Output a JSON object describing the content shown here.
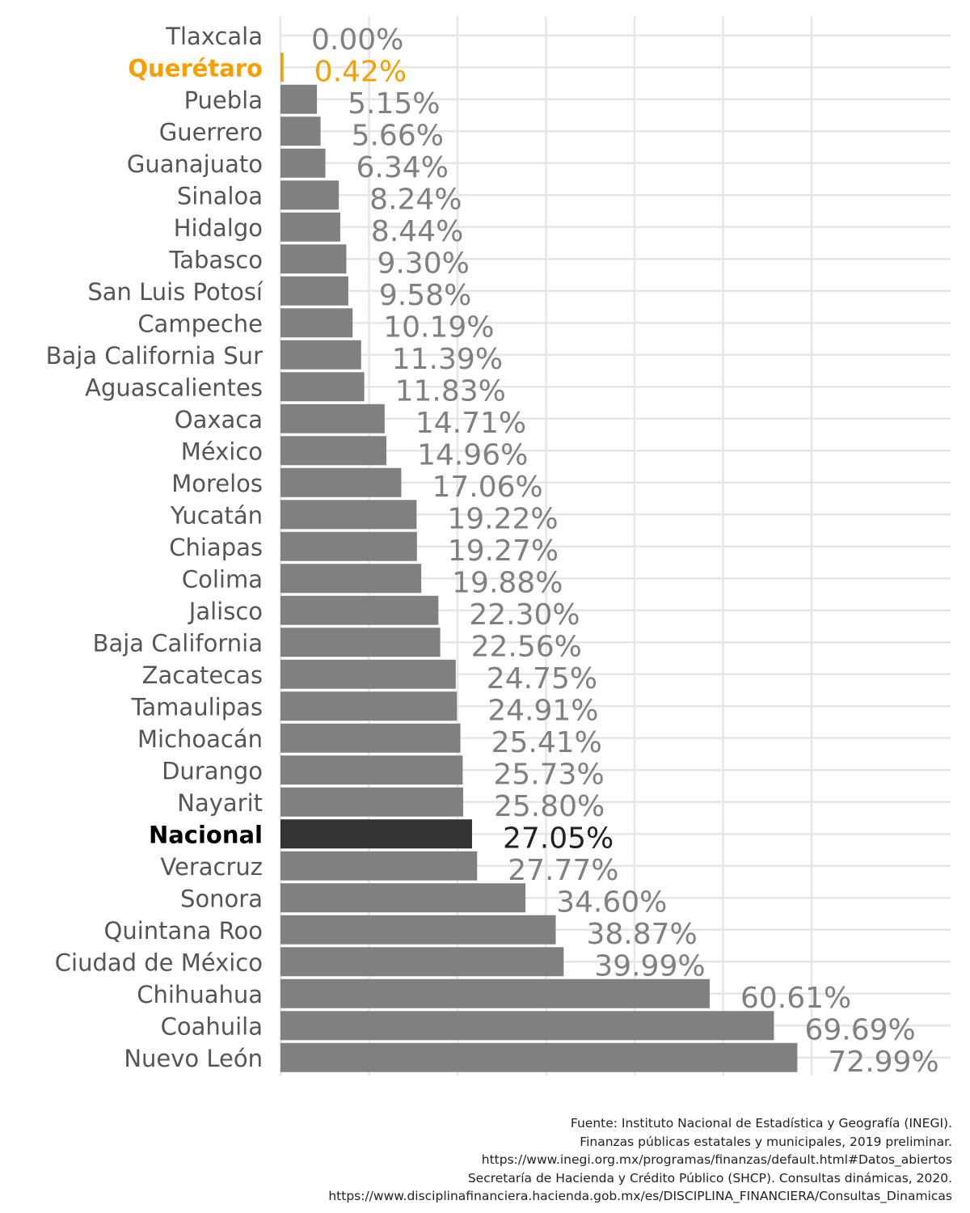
{
  "chart_data": {
    "type": "bar",
    "orientation": "horizontal",
    "grid": true,
    "xlim": [
      0,
      75
    ],
    "categories": [
      "Tlaxcala",
      "Querétaro",
      "Puebla",
      "Guerrero",
      "Guanajuato",
      "Sinaloa",
      "Hidalgo",
      "Tabasco",
      "San Luis Potosí",
      "Campeche",
      "Baja California Sur",
      "Aguascalientes",
      "Oaxaca",
      "México",
      "Morelos",
      "Yucatán",
      "Chiapas",
      "Colima",
      "Jalisco",
      "Baja California",
      "Zacatecas",
      "Tamaulipas",
      "Michoacán",
      "Durango",
      "Nayarit",
      "Nacional",
      "Veracruz",
      "Sonora",
      "Quintana Roo",
      "Ciudad de México",
      "Chihuahua",
      "Coahuila",
      "Nuevo León"
    ],
    "values": [
      0.0,
      0.42,
      5.15,
      5.66,
      6.34,
      8.24,
      8.44,
      9.3,
      9.58,
      10.19,
      11.39,
      11.83,
      14.71,
      14.96,
      17.06,
      19.22,
      19.27,
      19.88,
      22.3,
      22.56,
      24.75,
      24.91,
      25.41,
      25.73,
      25.8,
      27.05,
      27.77,
      34.6,
      38.87,
      39.99,
      60.61,
      69.69,
      72.99
    ],
    "value_labels": [
      "0.00%",
      "0.42%",
      "5.15%",
      "5.66%",
      "6.34%",
      "8.24%",
      "8.44%",
      "9.30%",
      "9.58%",
      "10.19%",
      "11.39%",
      "11.83%",
      "14.71%",
      "14.96%",
      "17.06%",
      "19.22%",
      "19.27%",
      "19.88%",
      "22.30%",
      "22.56%",
      "24.75%",
      "24.91%",
      "25.41%",
      "25.73%",
      "25.80%",
      "27.05%",
      "27.77%",
      "34.60%",
      "38.87%",
      "39.99%",
      "60.61%",
      "69.69%",
      "72.99%"
    ],
    "highlight": {
      "Querétaro": "#F5A000",
      "Nacional": "#333333"
    },
    "default_color": "#808080",
    "title": "",
    "xlabel": "",
    "ylabel": ""
  },
  "colors": {
    "bar": "#808080",
    "bar_national": "#333333",
    "highlight_state": "#F5A000",
    "label": "#555555",
    "value_label": "#808080",
    "grid": "#E6E6E6"
  },
  "source_lines": [
    "Fuente: Instituto Nacional de Estadística y Geografía (INEGI).",
    "Finanzas públicas estatales y municipales, 2019 preliminar.",
    "https://www.inegi.org.mx/programas/finanzas/default.html#Datos_abiertos",
    "Secretaría de Hacienda y Crédito Público (SHCP). Consultas dinámicas, 2020.",
    "https://www.disciplinafinanciera.hacienda.gob.mx/es/DISCIPLINA_FINANCIERA/Consultas_Dinamicas"
  ]
}
